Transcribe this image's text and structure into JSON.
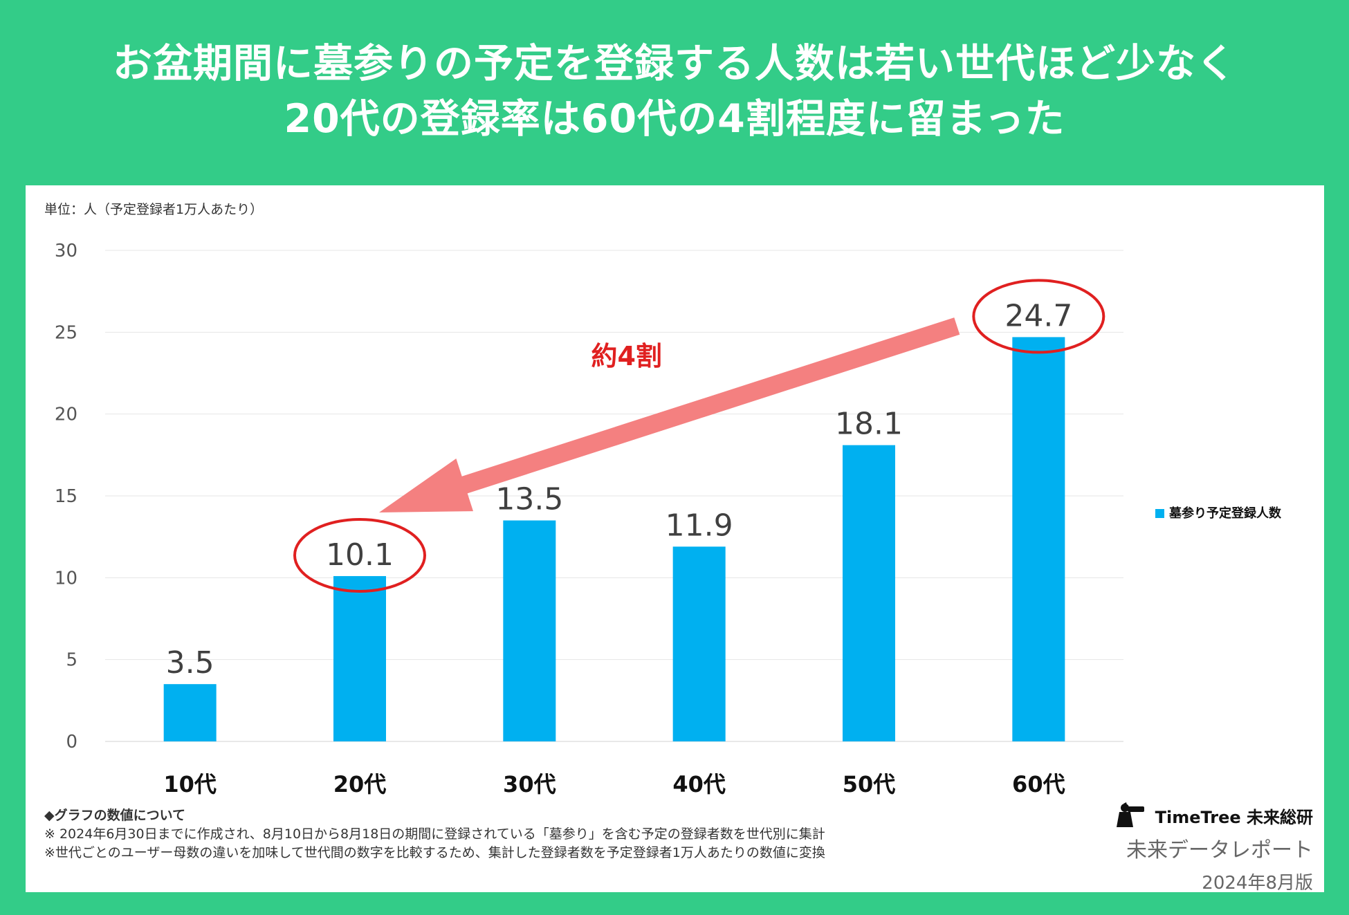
{
  "header": {
    "title_line1": "お盆期間に墓参りの予定を登録する人数は若い世代ほど少なく",
    "title_line2": "20代の登録率は60代の4割程度に留まった"
  },
  "unit_label": "単位：人（予定登録者1万人あたり）",
  "chart_data": {
    "type": "bar",
    "categories": [
      "10代",
      "20代",
      "30代",
      "40代",
      "50代",
      "60代"
    ],
    "series": [
      {
        "name": "墓参り予定登録人数",
        "values": [
          3.5,
          10.1,
          13.5,
          11.9,
          18.1,
          24.7
        ]
      }
    ],
    "ylim": [
      0,
      30
    ],
    "yticks": [
      0,
      5,
      10,
      15,
      20,
      25,
      30
    ],
    "grid": true,
    "legend": "right",
    "bar_color": "#00b0f0",
    "annotations": {
      "arrow_label": "約4割",
      "arrow_from": "60代",
      "arrow_to": "20代",
      "circled": [
        "20代",
        "60代"
      ],
      "arrow_color": "#f48080",
      "circle_color": "#e02020",
      "label_color": "#e02020"
    }
  },
  "notes": {
    "heading": "◆グラフの数値について",
    "line1": "※ 2024年6月30日までに作成され、8月10日から8月18日の期間に登録されている「墓参り」を含む予定の登録者数を世代別に集計",
    "line2": "※世代ごとのユーザー母数の違いを加味して世代間の数字を比較するため、集計した登録者数を予定登録者1万人あたりの数値に変換"
  },
  "brand": {
    "logo_text": "TimeTree 未来総研",
    "logo_icon": "birdwatcher-icon",
    "report_name": "未来データレポート",
    "edition": "2024年8月版"
  },
  "colors": {
    "background": "#33cc88",
    "panel": "#ffffff"
  }
}
